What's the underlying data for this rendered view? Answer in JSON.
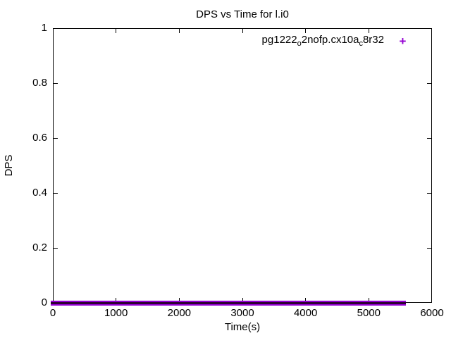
{
  "title": "DPS vs Time for l.i0",
  "legend": {
    "parts": [
      "pg1222",
      "o",
      "2nofp.cx10a",
      "c",
      "8r32"
    ],
    "plain_name": "pg1222_o2nofp.cx10a_c8r32",
    "marker": "+",
    "marker_color": "#9400d3"
  },
  "chart_data": {
    "type": "scatter",
    "title": "DPS vs Time for l.i0",
    "xlabel": "Time(s)",
    "ylabel": "DPS",
    "xlim": [
      0,
      6000
    ],
    "ylim": [
      0,
      1
    ],
    "xticks": [
      0,
      1000,
      2000,
      3000,
      4000,
      5000,
      6000
    ],
    "yticks": [
      "0",
      "0.2",
      "0.4",
      "0.6",
      "0.8",
      "1"
    ],
    "grid": false,
    "legend_position": "top-right-inside",
    "series": [
      {
        "name": "pg1222_o2nofp.cx10a_c8r32",
        "marker": "+",
        "color": "#9400d3",
        "band_core_color": "#2d0033",
        "y_value": 0,
        "x_start": 0,
        "x_end": 5550,
        "points_note": "dense overlapping '+' markers at DPS ~ 0 spanning x = 0 to ~5550 s, forming a solid band on the x-axis"
      }
    ]
  }
}
